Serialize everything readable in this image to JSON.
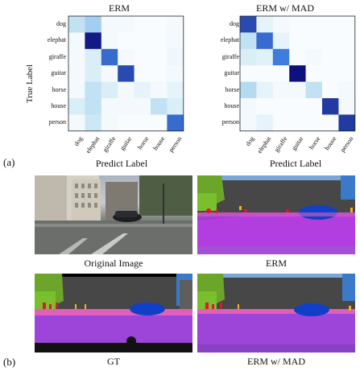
{
  "panel_a_label": "(a)",
  "panel_b_label": "(b)",
  "ylabel": "True Label",
  "xlabel": "Predict Label",
  "classes": [
    "dog",
    "elephat",
    "giraffe",
    "guitar",
    "horse",
    "house",
    "person"
  ],
  "seg_captions": {
    "original": "Original Image",
    "erm": "ERM",
    "gt": "GT",
    "erm_mad": "ERM w/ MAD"
  },
  "chart_data": [
    {
      "type": "heatmap",
      "title": "ERM",
      "categories": [
        "dog",
        "elephat",
        "giraffe",
        "guitar",
        "horse",
        "house",
        "person"
      ],
      "xlabel": "Predict Label",
      "ylabel": "True Label",
      "values": [
        [
          0.25,
          0.35,
          0.05,
          0.05,
          0.03,
          0.03,
          0.05
        ],
        [
          0.05,
          0.95,
          0.05,
          0.03,
          0.03,
          0.03,
          0.05
        ],
        [
          0.05,
          0.15,
          0.7,
          0.05,
          0.03,
          0.03,
          0.07
        ],
        [
          0.05,
          0.15,
          0.05,
          0.8,
          0.03,
          0.03,
          0.05
        ],
        [
          0.05,
          0.25,
          0.15,
          0.05,
          0.1,
          0.05,
          0.1
        ],
        [
          0.15,
          0.25,
          0.05,
          0.05,
          0.05,
          0.25,
          0.15
        ],
        [
          0.05,
          0.2,
          0.05,
          0.03,
          0.03,
          0.03,
          0.7
        ]
      ]
    },
    {
      "type": "heatmap",
      "title": "ERM w/ MAD",
      "categories": [
        "dog",
        "elephat",
        "giraffe",
        "guitar",
        "horse",
        "house",
        "person"
      ],
      "xlabel": "Predict Label",
      "ylabel": "True Label",
      "values": [
        [
          0.8,
          0.1,
          0.05,
          0.03,
          0.03,
          0.03,
          0.03
        ],
        [
          0.25,
          0.7,
          0.1,
          0.03,
          0.03,
          0.03,
          0.03
        ],
        [
          0.15,
          0.12,
          0.65,
          0.03,
          0.05,
          0.03,
          0.03
        ],
        [
          0.03,
          0.03,
          0.03,
          0.98,
          0.03,
          0.03,
          0.03
        ],
        [
          0.3,
          0.1,
          0.05,
          0.05,
          0.25,
          0.03,
          0.05
        ],
        [
          0.05,
          0.03,
          0.03,
          0.03,
          0.03,
          0.85,
          0.05
        ],
        [
          0.05,
          0.1,
          0.03,
          0.03,
          0.03,
          0.03,
          0.85
        ]
      ]
    }
  ]
}
